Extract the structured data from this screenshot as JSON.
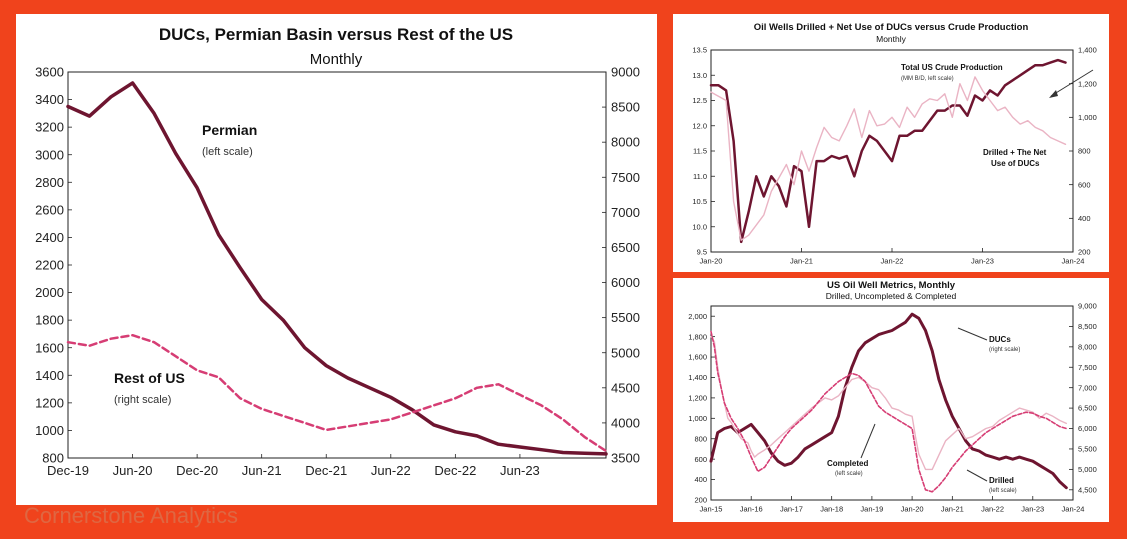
{
  "colors": {
    "frame": "#f0431c",
    "primary": "#6e1530",
    "secondary": "#d63d74",
    "light": "#eab4c4",
    "dark": "#1a1a1a"
  },
  "watermark": "Cornerstone Analytics",
  "chart_data": [
    {
      "id": "left",
      "type": "line",
      "title": "DUCs, Permian Basin versus Rest of the US",
      "subtitle": "Monthly",
      "x_ticks": [
        "Dec-19",
        "Jun-20",
        "Dec-20",
        "Jun-21",
        "Dec-21",
        "Jun-22",
        "Dec-22",
        "Jun-23"
      ],
      "x_range": [
        0,
        50
      ],
      "x_tick_positions": [
        0,
        6,
        12,
        18,
        24,
        30,
        36,
        42
      ],
      "y_left": {
        "range": [
          800,
          3600
        ],
        "ticks": [
          800,
          1000,
          1200,
          1400,
          1600,
          1800,
          2000,
          2200,
          2400,
          2600,
          2800,
          3000,
          3200,
          3400,
          3600
        ]
      },
      "y_right": {
        "range": [
          3500,
          9000
        ],
        "ticks": [
          3500,
          4000,
          4500,
          5000,
          5500,
          6000,
          6500,
          7000,
          7500,
          8000,
          8500,
          9000
        ]
      },
      "series": [
        {
          "name": "Permian",
          "note": "(left scale)",
          "axis": "left",
          "style": "solid",
          "x": [
            0,
            2,
            4,
            6,
            8,
            10,
            12,
            14,
            16,
            18,
            20,
            22,
            24,
            26,
            28,
            30,
            32,
            34,
            36,
            38,
            40,
            42,
            44,
            46,
            48,
            50
          ],
          "values": [
            3350,
            3280,
            3420,
            3520,
            3300,
            3010,
            2760,
            2420,
            2180,
            1950,
            1800,
            1600,
            1470,
            1380,
            1310,
            1240,
            1150,
            1040,
            990,
            960,
            900,
            880,
            860,
            840,
            835,
            830
          ]
        },
        {
          "name": "Rest of US",
          "note": "(right scale)",
          "axis": "right",
          "style": "dashed",
          "x": [
            0,
            2,
            4,
            6,
            8,
            10,
            12,
            14,
            16,
            18,
            20,
            22,
            24,
            26,
            28,
            30,
            32,
            34,
            36,
            38,
            40,
            42,
            44,
            46,
            48,
            50
          ],
          "values": [
            5150,
            5100,
            5200,
            5250,
            5150,
            4950,
            4750,
            4650,
            4350,
            4200,
            4100,
            4000,
            3900,
            3950,
            4000,
            4050,
            4150,
            4250,
            4350,
            4500,
            4550,
            4400,
            4250,
            4050,
            3800,
            3600
          ]
        }
      ]
    },
    {
      "id": "top-right",
      "type": "line",
      "title": "Oil Wells Drilled + Net Use of DUCs versus Crude Production",
      "subtitle": "Monthly",
      "x_ticks": [
        "Jan-20",
        "Jan-21",
        "Jan-22",
        "Jan-23",
        "Jan-24"
      ],
      "x_range": [
        0,
        48
      ],
      "x_tick_positions": [
        0,
        12,
        24,
        36,
        48
      ],
      "y_left": {
        "range": [
          9.5,
          13.5
        ],
        "ticks": [
          9.5,
          10.0,
          10.5,
          11.0,
          11.5,
          12.0,
          12.5,
          13.0,
          13.5
        ]
      },
      "y_right": {
        "range": [
          200,
          1400
        ],
        "ticks": [
          200,
          400,
          600,
          800,
          1000,
          1200,
          1400
        ]
      },
      "series": [
        {
          "name": "Total US Crude Production",
          "note": "(MM B/D, left scale)",
          "axis": "left",
          "style": "solid",
          "x": [
            0,
            1,
            2,
            3,
            4,
            5,
            6,
            7,
            8,
            9,
            10,
            11,
            12,
            13,
            14,
            15,
            16,
            17,
            18,
            19,
            20,
            21,
            22,
            23,
            24,
            25,
            26,
            27,
            28,
            29,
            30,
            31,
            32,
            33,
            34,
            35,
            36,
            37,
            38,
            39,
            40,
            41,
            42,
            43,
            44,
            45,
            46,
            47
          ],
          "values": [
            12.8,
            12.8,
            12.7,
            11.7,
            9.7,
            10.3,
            11.0,
            10.6,
            11.0,
            10.8,
            10.4,
            11.2,
            11.1,
            10.0,
            11.3,
            11.3,
            11.4,
            11.35,
            11.4,
            11.0,
            11.5,
            11.8,
            11.7,
            11.5,
            11.3,
            11.8,
            11.8,
            11.9,
            11.9,
            12.1,
            12.3,
            12.3,
            12.4,
            12.4,
            12.2,
            12.6,
            12.5,
            12.7,
            12.6,
            12.8,
            12.9,
            13.0,
            13.1,
            13.2,
            13.2,
            13.25,
            13.3,
            13.25
          ]
        },
        {
          "name": "Drilled + The Net Use of DUCs",
          "axis": "right",
          "style": "solid",
          "x": [
            0,
            2,
            3,
            4,
            5,
            6,
            7,
            8,
            10,
            11,
            12,
            13,
            14,
            15,
            16,
            17,
            18,
            19,
            20,
            21,
            22,
            23,
            24,
            25,
            26,
            27,
            28,
            29,
            30,
            31,
            32,
            33,
            34,
            35,
            36,
            37,
            38,
            39,
            40,
            41,
            42,
            43,
            44,
            45,
            46,
            47
          ],
          "values": [
            1150,
            1100,
            500,
            270,
            300,
            360,
            420,
            560,
            720,
            600,
            800,
            680,
            820,
            940,
            880,
            860,
            950,
            1050,
            880,
            1040,
            950,
            960,
            1000,
            940,
            1060,
            1000,
            1080,
            1110,
            1100,
            1140,
            1000,
            1200,
            1100,
            1240,
            1160,
            1100,
            1040,
            1060,
            1000,
            960,
            980,
            940,
            920,
            880,
            860,
            840
          ]
        }
      ]
    },
    {
      "id": "bottom-right",
      "type": "line",
      "title": "US Oil Well Metrics, Monthly",
      "subtitle": "Drilled, Uncompleted & Completed",
      "x_ticks": [
        "Jan-15",
        "Jan-16",
        "Jan-17",
        "Jan-18",
        "Jan-19",
        "Jan-20",
        "Jan-21",
        "Jan-22",
        "Jan-23",
        "Jan-24"
      ],
      "x_range": [
        0,
        108
      ],
      "x_tick_positions": [
        0,
        12,
        24,
        36,
        48,
        60,
        72,
        84,
        96,
        108
      ],
      "y_left": {
        "range": [
          200,
          2100
        ],
        "ticks": [
          200,
          400,
          600,
          800,
          1000,
          1200,
          1400,
          1600,
          1800,
          2000
        ]
      },
      "y_right": {
        "range": [
          4250,
          9000
        ],
        "ticks": [
          4500,
          5000,
          5500,
          6000,
          6500,
          7000,
          7500,
          8000,
          8500,
          9000
        ]
      },
      "series": [
        {
          "name": "DUCs",
          "note": "(right scale)",
          "axis": "right",
          "style": "solid",
          "x": [
            0,
            2,
            4,
            6,
            8,
            10,
            12,
            14,
            16,
            18,
            20,
            22,
            24,
            26,
            28,
            30,
            32,
            34,
            36,
            38,
            40,
            42,
            44,
            46,
            48,
            50,
            52,
            54,
            56,
            58,
            60,
            62,
            64,
            66,
            68,
            70,
            72,
            74,
            76,
            78,
            80,
            82,
            84,
            86,
            88,
            90,
            92,
            94,
            96,
            98,
            100,
            102,
            104,
            106
          ],
          "values": [
            5200,
            5900,
            6000,
            6050,
            5900,
            6000,
            6100,
            5900,
            5700,
            5400,
            5200,
            5100,
            5150,
            5300,
            5500,
            5600,
            5700,
            5800,
            5900,
            6300,
            7000,
            7500,
            7900,
            8100,
            8200,
            8300,
            8350,
            8400,
            8500,
            8600,
            8800,
            8700,
            8400,
            7900,
            7200,
            6700,
            6300,
            6000,
            5700,
            5500,
            5450,
            5350,
            5300,
            5250,
            5300,
            5250,
            5300,
            5250,
            5200,
            5100,
            5000,
            4900,
            4700,
            4550
          ]
        },
        {
          "name": "Completed",
          "note": "(left scale)",
          "axis": "left",
          "style": "solid",
          "x": [
            0,
            1,
            2,
            3,
            4,
            5,
            6,
            7,
            8,
            9,
            10,
            11,
            12,
            13,
            14,
            16,
            18,
            20,
            22,
            24,
            26,
            28,
            30,
            32,
            34,
            36,
            38,
            40,
            42,
            44,
            46,
            48,
            50,
            52,
            54,
            56,
            58,
            60,
            61,
            62,
            64,
            66,
            68,
            70,
            72,
            74,
            76,
            78,
            80,
            82,
            84,
            86,
            88,
            90,
            92,
            94,
            96,
            98,
            100,
            102,
            104,
            106
          ],
          "values": [
            1800,
            1750,
            1500,
            1300,
            1150,
            1000,
            960,
            900,
            850,
            800,
            780,
            760,
            680,
            620,
            650,
            690,
            740,
            800,
            860,
            920,
            980,
            1040,
            1100,
            1150,
            1200,
            1180,
            1220,
            1300,
            1380,
            1400,
            1360,
            1300,
            1280,
            1200,
            1100,
            1080,
            1040,
            1020,
            820,
            650,
            500,
            500,
            640,
            780,
            840,
            900,
            800,
            820,
            860,
            900,
            920,
            980,
            1020,
            1060,
            1100,
            1080,
            1060,
            1000,
            1050,
            1020,
            980,
            950
          ]
        },
        {
          "name": "Drilled",
          "note": "(left scale)",
          "axis": "left",
          "style": "dashed",
          "x": [
            0,
            1,
            2,
            3,
            4,
            6,
            8,
            10,
            12,
            14,
            16,
            18,
            20,
            22,
            24,
            26,
            28,
            30,
            32,
            34,
            36,
            38,
            40,
            42,
            44,
            46,
            48,
            50,
            52,
            54,
            56,
            58,
            60,
            61,
            62,
            64,
            66,
            68,
            70,
            72,
            74,
            76,
            78,
            80,
            82,
            84,
            86,
            88,
            90,
            92,
            94,
            96,
            98,
            100,
            102,
            104,
            106
          ],
          "values": [
            1850,
            1700,
            1450,
            1300,
            1150,
            1000,
            900,
            780,
            620,
            480,
            520,
            620,
            720,
            820,
            900,
            960,
            1020,
            1080,
            1160,
            1240,
            1300,
            1360,
            1400,
            1440,
            1420,
            1360,
            1240,
            1120,
            1060,
            1020,
            980,
            940,
            900,
            700,
            500,
            300,
            280,
            340,
            420,
            520,
            600,
            680,
            740,
            800,
            860,
            900,
            940,
            980,
            1020,
            1040,
            1060,
            1050,
            1020,
            1000,
            960,
            920,
            900
          ]
        }
      ]
    }
  ],
  "left_labels": {
    "permian": "Permian",
    "permian_note": "(left scale)",
    "rest": "Rest of US",
    "rest_note": "(right scale)"
  },
  "tr_labels": {
    "prod": "Total US Crude Production",
    "prod_note": "(MM B/D, left scale)",
    "drilled_1": "Drilled + The Net",
    "drilled_2": "Use of DUCs"
  },
  "br_labels": {
    "ducs": "DUCs",
    "ducs_note": "(right scale)",
    "completed": "Completed",
    "completed_note": "(left scale)",
    "drilled": "Drilled",
    "drilled_note": "(left scale)"
  }
}
